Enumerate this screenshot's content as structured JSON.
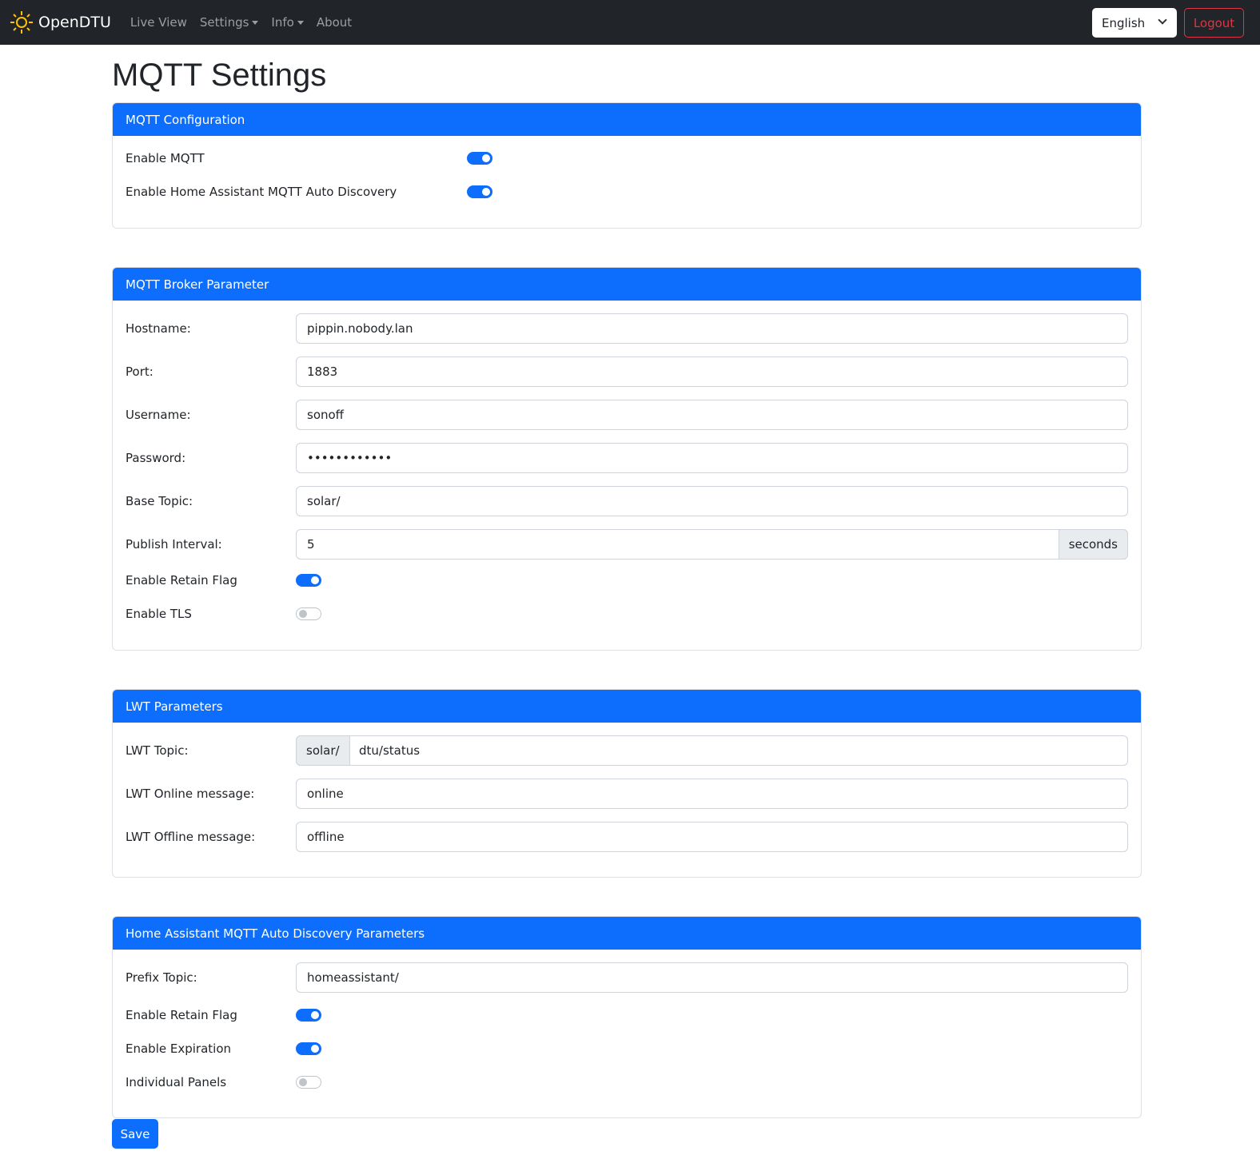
{
  "nav": {
    "brand": "OpenDTU",
    "links": [
      "Live View",
      "Settings",
      "Info",
      "About"
    ],
    "language": "English",
    "logout": "Logout"
  },
  "page_title": "MQTT Settings",
  "config": {
    "title": "MQTT Configuration",
    "enable_mqtt": {
      "label": "Enable MQTT",
      "on": true
    },
    "enable_hass": {
      "label": "Enable Home Assistant MQTT Auto Discovery",
      "on": true
    }
  },
  "broker": {
    "title": "MQTT Broker Parameter",
    "hostname": {
      "label": "Hostname:",
      "value": "pippin.nobody.lan"
    },
    "port": {
      "label": "Port:",
      "value": "1883"
    },
    "username": {
      "label": "Username:",
      "value": "sonoff"
    },
    "password": {
      "label": "Password:",
      "value": "••••••••••••"
    },
    "base_topic": {
      "label": "Base Topic:",
      "value": "solar/"
    },
    "publish_interval": {
      "label": "Publish Interval:",
      "value": "5",
      "unit": "seconds"
    },
    "retain": {
      "label": "Enable Retain Flag",
      "on": true
    },
    "tls": {
      "label": "Enable TLS",
      "on": false
    }
  },
  "lwt": {
    "title": "LWT Parameters",
    "topic": {
      "label": "LWT Topic:",
      "prefix": "solar/",
      "value": "dtu/status"
    },
    "online": {
      "label": "LWT Online message:",
      "value": "online"
    },
    "offline": {
      "label": "LWT Offline message:",
      "value": "offline"
    }
  },
  "hass": {
    "title": "Home Assistant MQTT Auto Discovery Parameters",
    "prefix": {
      "label": "Prefix Topic:",
      "value": "homeassistant/"
    },
    "retain": {
      "label": "Enable Retain Flag",
      "on": true
    },
    "expiration": {
      "label": "Enable Expiration",
      "on": true
    },
    "individual": {
      "label": "Individual Panels",
      "on": false
    }
  },
  "save": "Save",
  "colors": {
    "primary": "#0d6efd",
    "navbar": "#212529",
    "danger": "#dc3545",
    "brand_icon": "#ffc107"
  }
}
